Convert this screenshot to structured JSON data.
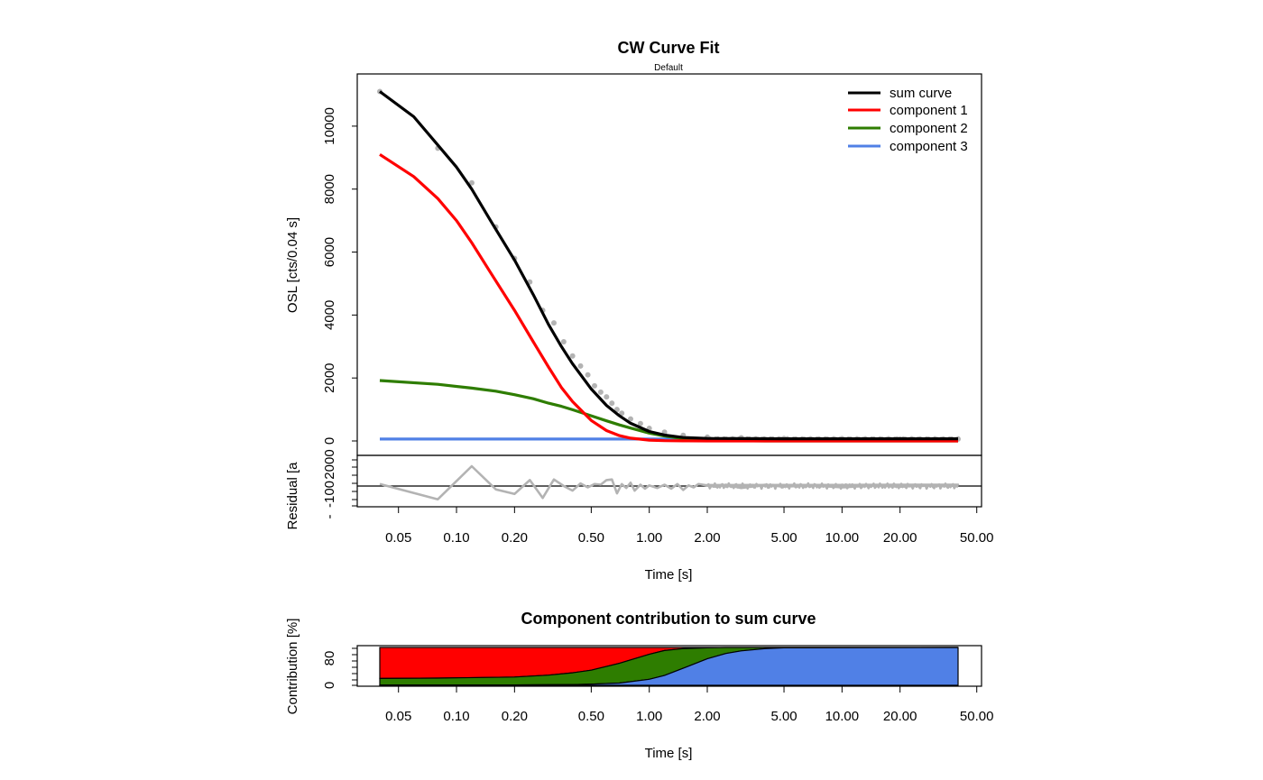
{
  "colors": {
    "sum": "#000000",
    "component1": "#ff0000",
    "component2": "#2e7d00",
    "component3": "#5080e6",
    "data_points": "#b3b3b3",
    "residual": "#b3b3b3"
  },
  "chart_data": [
    {
      "type": "line",
      "title": "CW Curve Fit",
      "subtitle": "Default",
      "xlabel": "Time [s]",
      "ylabel": "OSL [cts/0.04 s]",
      "xscale": "log",
      "xlim": [
        0.04,
        40
      ],
      "ylim": [
        0,
        11200
      ],
      "x_ticks": [
        0.05,
        0.1,
        0.2,
        0.5,
        1,
        2,
        5,
        10,
        20,
        50
      ],
      "x_tick_labels": [
        "0.05",
        "0.10",
        "0.20",
        "0.50",
        "1.00",
        "2.00",
        "5.00",
        "10.00",
        "20.00",
        "50.00"
      ],
      "y_ticks": [
        0,
        2000,
        4000,
        6000,
        8000,
        10000
      ],
      "y_tick_labels": [
        "0",
        "2000",
        "4000",
        "6000",
        "8000",
        "10000"
      ],
      "grid": false,
      "legend_position": "top-right",
      "legend": [
        "sum curve",
        "component 1",
        "component 2",
        "component 3"
      ],
      "data_points": {
        "x": [
          0.04,
          0.08,
          0.12,
          0.16,
          0.2,
          0.24,
          0.28,
          0.32,
          0.36,
          0.4,
          0.44,
          0.48,
          0.52,
          0.56,
          0.6,
          0.64,
          0.68,
          0.72,
          0.8,
          0.9,
          1.0,
          1.2,
          1.5,
          2.0,
          3.0,
          5.0,
          10.0,
          20.0,
          40.0
        ],
        "y": [
          11100,
          9300,
          8200,
          6800,
          5800,
          5050,
          4150,
          3750,
          3150,
          2700,
          2380,
          2100,
          1750,
          1550,
          1400,
          1200,
          1000,
          880,
          700,
          550,
          400,
          280,
          180,
          120,
          100,
          80,
          70,
          60,
          60
        ]
      },
      "series": [
        {
          "name": "sum curve",
          "x": [
            0.04,
            0.06,
            0.08,
            0.1,
            0.12,
            0.15,
            0.2,
            0.25,
            0.3,
            0.35,
            0.4,
            0.5,
            0.6,
            0.7,
            0.8,
            1.0,
            1.2,
            1.5,
            2.0,
            3.0,
            5.0,
            10.0,
            20.0,
            40.0
          ],
          "y": [
            11100,
            10300,
            9400,
            8700,
            8000,
            7000,
            5750,
            4650,
            3700,
            3000,
            2450,
            1650,
            1130,
            800,
            560,
            300,
            190,
            110,
            80,
            75,
            70,
            70,
            70,
            70
          ]
        },
        {
          "name": "component 1",
          "x": [
            0.04,
            0.06,
            0.08,
            0.1,
            0.12,
            0.15,
            0.2,
            0.25,
            0.3,
            0.35,
            0.4,
            0.5,
            0.6,
            0.7,
            0.8,
            1.0,
            1.2,
            1.5,
            2.0,
            40.0
          ],
          "y": [
            9100,
            8400,
            7700,
            7000,
            6300,
            5350,
            4150,
            3150,
            2350,
            1700,
            1250,
            650,
            330,
            170,
            90,
            25,
            8,
            2,
            0,
            0
          ]
        },
        {
          "name": "component 2",
          "x": [
            0.04,
            0.08,
            0.12,
            0.16,
            0.2,
            0.25,
            0.3,
            0.35,
            0.4,
            0.5,
            0.6,
            0.7,
            0.8,
            1.0,
            1.2,
            1.5,
            2.0,
            2.5,
            3.0,
            4.0,
            40.0
          ],
          "y": [
            1920,
            1800,
            1680,
            1580,
            1470,
            1340,
            1200,
            1100,
            990,
            800,
            640,
            510,
            410,
            250,
            155,
            75,
            25,
            10,
            5,
            0,
            0
          ]
        },
        {
          "name": "component 3",
          "x": [
            0.04,
            40.0
          ],
          "y": [
            60,
            60
          ]
        }
      ]
    },
    {
      "type": "line",
      "xlabel": "",
      "ylabel": "Residual [a",
      "xscale": "log",
      "xlim": [
        0.04,
        40
      ],
      "ylim": [
        -2500,
        2600
      ],
      "y_tick_labels": [
        "-",
        "-100",
        "2000"
      ],
      "residuals": {
        "x": [
          0.04,
          0.08,
          0.12,
          0.16,
          0.2,
          0.24,
          0.28,
          0.32,
          0.36,
          0.4,
          0.44,
          0.48,
          0.52,
          0.56,
          0.6,
          0.64,
          0.68,
          0.72,
          0.76,
          0.8,
          0.84,
          0.9,
          0.95,
          1.0,
          1.1,
          1.2,
          1.3,
          1.4,
          1.5,
          1.6,
          1.7,
          1.8,
          2.0,
          2.2,
          2.5,
          3.0,
          4.0,
          5.0,
          7.0,
          10.0,
          15.0,
          20.0,
          30.0,
          40.0
        ],
        "y": [
          300,
          -2000,
          3000,
          -500,
          -1200,
          900,
          -1800,
          1000,
          0,
          -700,
          400,
          -200,
          300,
          200,
          900,
          1000,
          -1100,
          300,
          -300,
          500,
          -700,
          200,
          -400,
          100,
          -300,
          200,
          -400,
          300,
          -600,
          100,
          -200,
          300,
          100,
          -100,
          200,
          -300,
          200,
          -100,
          100,
          -200,
          100,
          -100,
          150,
          200
        ]
      }
    },
    {
      "type": "area",
      "title": "Component contribution to sum curve",
      "xlabel": "Time [s]",
      "ylabel": "Contribution [%]",
      "xscale": "log",
      "xlim": [
        0.04,
        40
      ],
      "ylim": [
        0,
        100
      ],
      "y_tick_labels": [
        "0",
        "80"
      ],
      "x_tick_labels": [
        "0.05",
        "0.10",
        "0.20",
        "0.50",
        "1.00",
        "2.00",
        "5.00",
        "10.00",
        "20.00",
        "50.00"
      ],
      "boundaries": {
        "x": [
          0.04,
          0.08,
          0.15,
          0.2,
          0.3,
          0.4,
          0.5,
          0.7,
          1.0,
          1.2,
          1.5,
          2.0,
          2.5,
          3.0,
          4.0,
          5.0,
          40.0
        ],
        "component1_top": [
          100,
          100,
          100,
          100,
          100,
          100,
          100,
          100,
          100,
          100,
          100,
          100,
          100,
          100,
          100,
          100,
          100
        ],
        "component2_top": [
          18,
          19,
          21,
          22,
          27,
          33,
          40,
          58,
          82,
          92,
          97,
          99,
          100,
          100,
          100,
          100,
          100
        ],
        "component3_top": [
          1,
          1,
          1,
          1,
          1.5,
          2,
          3,
          6,
          16,
          26,
          45,
          70,
          84,
          91,
          97,
          99,
          100
        ]
      }
    }
  ]
}
